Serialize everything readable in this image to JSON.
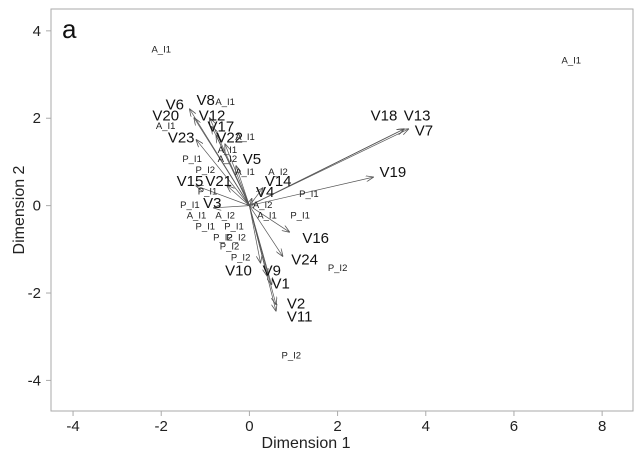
{
  "chart_data": {
    "type": "scatter",
    "subtype": "biplot",
    "panel_label": "a",
    "xlabel": "Dimension 1",
    "ylabel": "Dimension 2",
    "xlim": [
      -4.5,
      8.7
    ],
    "ylim": [
      -4.7,
      4.5
    ],
    "xticks": [
      -4,
      -2,
      0,
      2,
      4,
      6,
      8
    ],
    "yticks": [
      -4,
      -2,
      0,
      2,
      4
    ],
    "grid": false,
    "colors": {
      "axis": "#aaaaaa",
      "arrow": "#555555",
      "text": "#111111"
    },
    "vectors": [
      {
        "name": "V6",
        "x": -1.35,
        "y": 2.2,
        "lx": -1.9,
        "ly": 2.2
      },
      {
        "name": "V8",
        "x": -0.9,
        "y": 2.0,
        "lx": -1.2,
        "ly": 2.3
      },
      {
        "name": "V20",
        "x": -1.25,
        "y": 2.0,
        "lx": -2.2,
        "ly": 1.95
      },
      {
        "name": "V12",
        "x": -0.85,
        "y": 1.8,
        "lx": -1.15,
        "ly": 1.95
      },
      {
        "name": "V17",
        "x": -0.75,
        "y": 1.6,
        "lx": -0.95,
        "ly": 1.7
      },
      {
        "name": "V23",
        "x": -1.2,
        "y": 1.5,
        "lx": -1.85,
        "ly": 1.45
      },
      {
        "name": "V22",
        "x": -0.55,
        "y": 1.4,
        "lx": -0.75,
        "ly": 1.45
      },
      {
        "name": "V5",
        "x": -0.3,
        "y": 0.9,
        "lx": -0.15,
        "ly": 0.95
      },
      {
        "name": "V14",
        "x": 0.3,
        "y": 0.4,
        "lx": 0.35,
        "ly": 0.45
      },
      {
        "name": "V15",
        "x": -1.2,
        "y": 0.45,
        "lx": -1.65,
        "ly": 0.45
      },
      {
        "name": "V21",
        "x": -0.5,
        "y": 0.45,
        "lx": -1.0,
        "ly": 0.45
      },
      {
        "name": "V4",
        "x": 0.05,
        "y": 0.15,
        "lx": 0.15,
        "ly": 0.2
      },
      {
        "name": "V3",
        "x": -0.8,
        "y": -0.05,
        "lx": -1.05,
        "ly": -0.05
      },
      {
        "name": "V18",
        "x": 3.5,
        "y": 1.75,
        "lx": 2.75,
        "ly": 1.95
      },
      {
        "name": "V13",
        "x": 3.5,
        "y": 1.75,
        "lx": 3.5,
        "ly": 1.95
      },
      {
        "name": "V7",
        "x": 3.6,
        "y": 1.75,
        "lx": 3.75,
        "ly": 1.6
      },
      {
        "name": "V19",
        "x": 2.8,
        "y": 0.65,
        "lx": 2.95,
        "ly": 0.65
      },
      {
        "name": "V16",
        "x": 0.9,
        "y": -0.6,
        "lx": 1.2,
        "ly": -0.85
      },
      {
        "name": "V24",
        "x": 0.75,
        "y": -1.15,
        "lx": 0.95,
        "ly": -1.35
      },
      {
        "name": "V10",
        "x": 0.25,
        "y": -1.3,
        "lx": -0.55,
        "ly": -1.6
      },
      {
        "name": "V9",
        "x": 0.4,
        "y": -1.6,
        "lx": 0.3,
        "ly": -1.6
      },
      {
        "name": "V1",
        "x": 0.5,
        "y": -1.8,
        "lx": 0.5,
        "ly": -1.9
      },
      {
        "name": "V2",
        "x": 0.6,
        "y": -2.25,
        "lx": 0.85,
        "ly": -2.35
      },
      {
        "name": "V11",
        "x": 0.6,
        "y": -2.4,
        "lx": 0.85,
        "ly": -2.65
      }
    ],
    "observations": [
      {
        "label": "A_I1",
        "x": -2.0,
        "y": 3.5
      },
      {
        "label": "A_I1",
        "x": 7.3,
        "y": 3.25
      },
      {
        "label": "A_I1",
        "x": -0.55,
        "y": 2.3
      },
      {
        "label": "A_I1",
        "x": -1.9,
        "y": 1.75
      },
      {
        "label": "A_I1",
        "x": -0.1,
        "y": 1.5
      },
      {
        "label": "A_I1",
        "x": -0.5,
        "y": 1.2
      },
      {
        "label": "A_I2",
        "x": -0.5,
        "y": 1.0
      },
      {
        "label": "A_I1",
        "x": -0.1,
        "y": 0.7
      },
      {
        "label": "A_I2",
        "x": 0.65,
        "y": 0.7
      },
      {
        "label": "P_I1",
        "x": -1.3,
        "y": 1.0
      },
      {
        "label": "P_I2",
        "x": -1.0,
        "y": 0.75
      },
      {
        "label": "P_I1",
        "x": -0.95,
        "y": 0.25
      },
      {
        "label": "P_I1",
        "x": 1.35,
        "y": 0.2
      },
      {
        "label": "P_I1",
        "x": -1.35,
        "y": -0.05
      },
      {
        "label": "A_I2",
        "x": 0.3,
        "y": -0.05
      },
      {
        "label": "A_I1",
        "x": -1.2,
        "y": -0.3
      },
      {
        "label": "A_I2",
        "x": -0.55,
        "y": -0.3
      },
      {
        "label": "A_I1",
        "x": 0.4,
        "y": -0.3
      },
      {
        "label": "P_I1",
        "x": 1.15,
        "y": -0.3
      },
      {
        "label": "P_I1",
        "x": -1.0,
        "y": -0.55
      },
      {
        "label": "P_I1",
        "x": -0.35,
        "y": -0.55
      },
      {
        "label": "P_I2",
        "x": -0.6,
        "y": -0.8
      },
      {
        "label": "P_I2",
        "x": -0.3,
        "y": -0.8
      },
      {
        "label": "P_I2",
        "x": -0.45,
        "y": -1.0
      },
      {
        "label": "P_I2",
        "x": -0.2,
        "y": -1.25
      },
      {
        "label": "P_I2",
        "x": 2.0,
        "y": -1.5
      },
      {
        "label": "P_I2",
        "x": 0.95,
        "y": -3.5
      }
    ]
  }
}
